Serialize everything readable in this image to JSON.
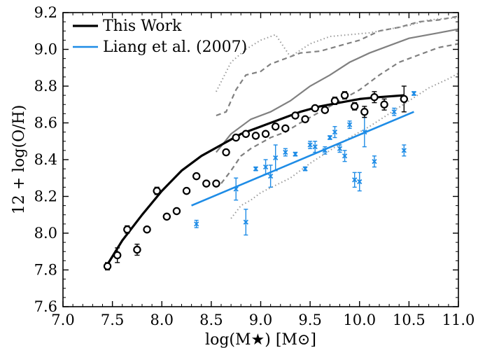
{
  "chart_data": {
    "type": "scatter",
    "xlabel": "log(M★) [M⊙]",
    "ylabel": "12 + log(O/H)",
    "xlim": [
      7.0,
      11.0
    ],
    "ylim": [
      7.6,
      9.2
    ],
    "x_ticks": [
      "7.0",
      "7.5",
      "8.0",
      "8.5",
      "9.0",
      "9.5",
      "10.0",
      "10.5",
      "11.0"
    ],
    "y_ticks": [
      "7.6",
      "7.8",
      "8.0",
      "8.2",
      "8.4",
      "8.6",
      "8.8",
      "9.0",
      "9.2"
    ],
    "legend": {
      "position": "top-left",
      "entries": [
        {
          "label": "This Work",
          "color": "#000000"
        },
        {
          "label": "Liang et al. (2007)",
          "color": "#1e8ce6"
        }
      ]
    },
    "series": [
      {
        "name": "This Work",
        "kind": "fit-line",
        "color": "#000000",
        "x": [
          7.45,
          7.6,
          7.8,
          8.0,
          8.2,
          8.4,
          8.6,
          8.8,
          9.0,
          9.2,
          9.4,
          9.6,
          9.8,
          10.0,
          10.2,
          10.45
        ],
        "y": [
          7.83,
          7.96,
          8.1,
          8.23,
          8.34,
          8.42,
          8.48,
          8.54,
          8.58,
          8.62,
          8.66,
          8.69,
          8.71,
          8.73,
          8.74,
          8.75
        ]
      },
      {
        "name": "This Work",
        "kind": "points",
        "color": "#000000",
        "x": [
          7.45,
          7.55,
          7.65,
          7.75,
          7.85,
          7.95,
          8.05,
          8.15,
          8.25,
          8.35,
          8.45,
          8.55,
          8.65,
          8.75,
          8.85,
          8.95,
          9.05,
          9.15,
          9.25,
          9.35,
          9.45,
          9.55,
          9.65,
          9.75,
          9.85,
          9.95,
          10.05,
          10.15,
          10.25,
          10.45
        ],
        "y": [
          7.82,
          7.88,
          8.02,
          7.91,
          8.02,
          8.23,
          8.09,
          8.12,
          8.23,
          8.31,
          8.27,
          8.27,
          8.44,
          8.52,
          8.54,
          8.53,
          8.54,
          8.58,
          8.57,
          8.64,
          8.62,
          8.68,
          8.67,
          8.72,
          8.75,
          8.69,
          8.66,
          8.74,
          8.7,
          8.73
        ],
        "err": [
          0.02,
          0.04,
          0.02,
          0.03,
          0.01,
          0.02,
          0.01,
          0.01,
          0.01,
          0.01,
          0.01,
          0.01,
          0.01,
          0.01,
          0.01,
          0.01,
          0.01,
          0.01,
          0.01,
          0.01,
          0.01,
          0.01,
          0.01,
          0.02,
          0.02,
          0.02,
          0.03,
          0.03,
          0.03,
          0.07
        ]
      },
      {
        "name": "Liang et al. (2007)",
        "kind": "fit-line",
        "color": "#1e8ce6",
        "x": [
          8.3,
          10.55
        ],
        "y": [
          8.15,
          8.66
        ]
      },
      {
        "name": "Liang et al. (2007)",
        "kind": "points",
        "color": "#1e8ce6",
        "x": [
          8.35,
          8.75,
          8.85,
          8.95,
          9.05,
          9.1,
          9.15,
          9.25,
          9.35,
          9.45,
          9.5,
          9.55,
          9.65,
          9.7,
          9.75,
          9.8,
          9.85,
          9.9,
          9.95,
          10.0,
          10.05,
          10.15,
          10.35,
          10.45,
          10.55
        ],
        "y": [
          8.05,
          8.24,
          8.06,
          8.35,
          8.36,
          8.31,
          8.41,
          8.44,
          8.43,
          8.35,
          8.48,
          8.47,
          8.45,
          8.52,
          8.55,
          8.46,
          8.42,
          8.59,
          8.29,
          8.28,
          8.55,
          8.39,
          8.66,
          8.45,
          8.76
        ]
      },
      {
        "name": "",
        "kind": "grey-solid",
        "color": "#808080",
        "x": [
          8.55,
          8.7,
          8.9,
          9.1,
          9.3,
          9.5,
          9.7,
          9.9,
          10.1,
          10.3,
          10.5,
          10.8,
          11.0
        ],
        "y": [
          8.44,
          8.54,
          8.62,
          8.66,
          8.72,
          8.8,
          8.86,
          8.93,
          8.98,
          9.02,
          9.06,
          9.09,
          9.11
        ]
      },
      {
        "name": "",
        "kind": "grey-dashed-upper",
        "color": "#808080",
        "x": [
          8.55,
          8.65,
          8.75,
          8.85,
          9.0,
          9.1,
          9.25,
          9.4,
          9.6,
          9.8,
          10.0,
          10.2,
          10.4,
          10.6,
          10.8,
          11.0
        ],
        "y": [
          8.64,
          8.66,
          8.78,
          8.86,
          8.88,
          8.92,
          8.95,
          8.98,
          8.99,
          9.02,
          9.05,
          9.1,
          9.12,
          9.15,
          9.16,
          9.18
        ]
      },
      {
        "name": "",
        "kind": "grey-dashed-lower",
        "color": "#808080",
        "x": [
          8.6,
          8.7,
          8.8,
          8.9,
          9.0,
          9.1,
          9.25,
          9.4,
          9.6,
          9.8,
          10.0,
          10.2,
          10.4,
          10.6,
          10.8,
          11.0
        ],
        "y": [
          8.27,
          8.34,
          8.42,
          8.46,
          8.49,
          8.52,
          8.55,
          8.6,
          8.66,
          8.72,
          8.78,
          8.86,
          8.93,
          8.97,
          9.01,
          9.03
        ]
      },
      {
        "name": "",
        "kind": "grey-dotted-upper",
        "color": "#999999",
        "x": [
          8.55,
          8.7,
          8.85,
          9.0,
          9.15,
          9.3,
          9.5,
          9.7,
          9.9,
          10.1,
          10.3,
          10.5,
          10.7,
          10.9,
          11.0
        ],
        "y": [
          8.77,
          8.93,
          9.0,
          9.05,
          9.08,
          8.96,
          9.03,
          9.07,
          9.08,
          9.09,
          9.11,
          9.13,
          9.16,
          9.17,
          9.17
        ]
      },
      {
        "name": "",
        "kind": "grey-dotted-lower",
        "color": "#999999",
        "x": [
          8.7,
          8.8,
          8.9,
          9.0,
          9.15,
          9.3,
          9.5,
          9.7,
          9.9,
          10.1,
          10.3,
          10.5,
          10.7,
          10.9,
          11.0
        ],
        "y": [
          8.08,
          8.15,
          8.18,
          8.22,
          8.26,
          8.3,
          8.38,
          8.45,
          8.52,
          8.58,
          8.65,
          8.72,
          8.79,
          8.84,
          8.87
        ]
      }
    ]
  }
}
